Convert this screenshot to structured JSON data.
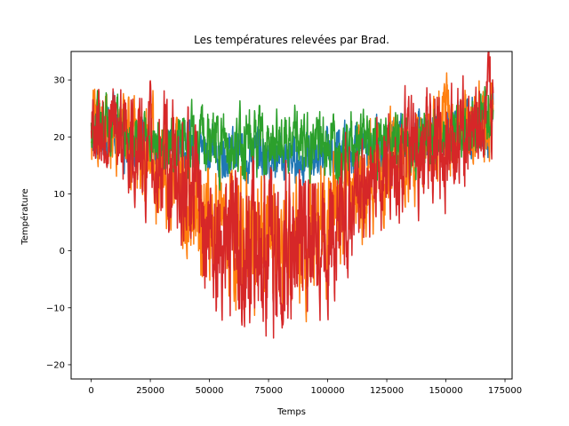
{
  "chart_data": {
    "type": "line",
    "title": "Les températures relevées par Brad.",
    "xlabel": "Temps",
    "ylabel": "Température",
    "xlim": [
      -8500,
      178000
    ],
    "ylim": [
      -22.5,
      35
    ],
    "xticks": [
      0,
      25000,
      50000,
      75000,
      100000,
      125000,
      150000,
      175000
    ],
    "xtick_labels": [
      "0",
      "25000",
      "50000",
      "75000",
      "100000",
      "125000",
      "150000",
      "175000"
    ],
    "yticks": [
      -20,
      -10,
      0,
      10,
      20,
      30
    ],
    "ytick_labels": [
      "−20",
      "−10",
      "0",
      "10",
      "20",
      "30"
    ],
    "grid": false,
    "series": [
      {
        "color": "#1f77b4",
        "x": [
          0,
          10000,
          20000,
          30000,
          40000,
          50000,
          60000,
          70000,
          80000,
          90000,
          100000,
          110000,
          120000,
          130000,
          140000,
          150000,
          160000,
          170000
        ],
        "y": [
          22,
          21,
          19,
          18,
          19,
          18,
          17,
          17,
          16,
          16,
          17,
          18,
          19,
          19,
          20,
          21,
          22,
          23
        ],
        "spread": [
          4,
          4,
          3,
          3,
          3,
          3,
          3,
          3,
          3,
          3,
          3,
          3,
          3,
          3,
          3,
          3,
          4,
          4
        ]
      },
      {
        "color": "#ff7f0e",
        "x": [
          0,
          10000,
          20000,
          30000,
          40000,
          50000,
          60000,
          70000,
          80000,
          90000,
          100000,
          110000,
          120000,
          130000,
          140000,
          150000,
          160000,
          170000
        ],
        "y": [
          22,
          21,
          18,
          15,
          12,
          5,
          3,
          2,
          0,
          1,
          5,
          10,
          14,
          17,
          18,
          20,
          22,
          24
        ],
        "spread": [
          5,
          5,
          6,
          7,
          8,
          8,
          8,
          8,
          9,
          8,
          8,
          7,
          6,
          6,
          6,
          6,
          5,
          5
        ]
      },
      {
        "color": "#2ca02c",
        "x": [
          0,
          10000,
          20000,
          30000,
          40000,
          50000,
          60000,
          70000,
          80000,
          90000,
          100000,
          110000,
          120000,
          130000,
          140000,
          150000,
          160000,
          170000
        ],
        "y": [
          24,
          22,
          20,
          19,
          19,
          19,
          19,
          19,
          19,
          19,
          19,
          19,
          19,
          19,
          19,
          20,
          22,
          25
        ],
        "spread": [
          4,
          3,
          3,
          3,
          4,
          4,
          4,
          4,
          4,
          4,
          4,
          4,
          4,
          4,
          4,
          3,
          4,
          4
        ]
      },
      {
        "color": "#d62728",
        "x": [
          0,
          10000,
          20000,
          30000,
          40000,
          50000,
          60000,
          70000,
          80000,
          90000,
          100000,
          110000,
          120000,
          130000,
          140000,
          150000,
          160000,
          170000
        ],
        "y": [
          22,
          21,
          18,
          15,
          12,
          4,
          2,
          1,
          -1,
          1,
          4,
          9,
          13,
          16,
          17,
          19,
          21,
          24
        ],
        "spread": [
          6,
          6,
          7,
          8,
          9,
          9,
          10,
          10,
          11,
          10,
          9,
          8,
          7,
          7,
          7,
          7,
          6,
          6
        ]
      }
    ]
  }
}
